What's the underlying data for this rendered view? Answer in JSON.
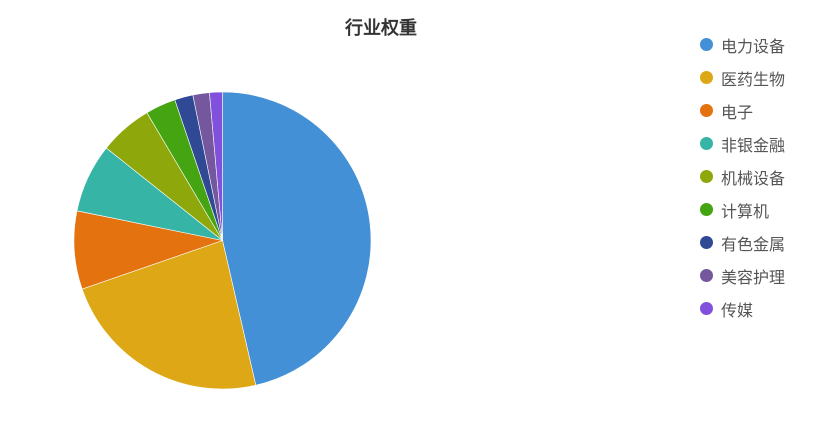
{
  "chart_data": {
    "type": "pie",
    "title": "行业权重",
    "legend_position": "right",
    "categories": [
      "电力设备",
      "医药生物",
      "电子",
      "非银金融",
      "机械设备",
      "计算机",
      "有色金属",
      "美容护理",
      "传媒"
    ],
    "values": [
      46.4,
      23.3,
      8.5,
      7.5,
      5.8,
      3.3,
      2.0,
      1.8,
      1.4
    ],
    "colors": [
      "#4390d6",
      "#dea715",
      "#e3720f",
      "#36b5a6",
      "#8ea70a",
      "#44a411",
      "#2f4995",
      "#74579c",
      "#8150dc"
    ]
  }
}
